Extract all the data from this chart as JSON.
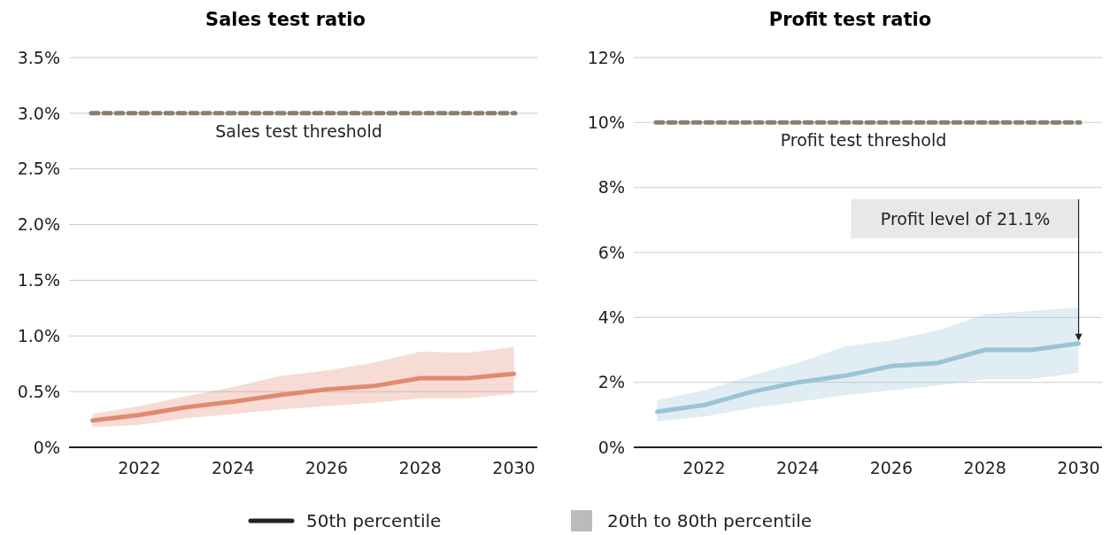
{
  "chart_data": [
    {
      "type": "line",
      "title": "Sales test ratio",
      "x": [
        2021,
        2022,
        2023,
        2024,
        2025,
        2026,
        2027,
        2028,
        2029,
        2030
      ],
      "xlim": [
        2020.5,
        2030.5
      ],
      "xticks": [
        2022,
        2024,
        2026,
        2028,
        2030
      ],
      "ylim": [
        0,
        3.5
      ],
      "yticks": [
        {
          "value": 0,
          "label": "0%"
        },
        {
          "value": 0.5,
          "label": "0.5%"
        },
        {
          "value": 1,
          "label": "1.0%"
        },
        {
          "value": 1.5,
          "label": "1.5%"
        },
        {
          "value": 2,
          "label": "2.0%"
        },
        {
          "value": 2.5,
          "label": "2.5%"
        },
        {
          "value": 3,
          "label": "3.0%"
        },
        {
          "value": 3.5,
          "label": "3.5%"
        }
      ],
      "grid": "y",
      "series": [
        {
          "color": "#e08a70",
          "values": [
            0.24,
            0.29,
            0.36,
            0.41,
            0.47,
            0.52,
            0.55,
            0.62,
            0.62,
            0.66
          ],
          "lower": [
            0.18,
            0.2,
            0.26,
            0.3,
            0.34,
            0.37,
            0.4,
            0.44,
            0.44,
            0.48
          ],
          "upper": [
            0.3,
            0.37,
            0.46,
            0.54,
            0.64,
            0.69,
            0.76,
            0.86,
            0.85,
            0.9
          ]
        }
      ],
      "ref_lines": [
        {
          "axis": "y",
          "value": 3,
          "label": "Sales test threshold",
          "color": "#8a7e6e",
          "line_style": "dashed"
        }
      ],
      "annotations": [
        "50th percentile",
        "20th to 80th percentile"
      ]
    },
    {
      "type": "line",
      "title": "Profit test ratio",
      "x": [
        2021,
        2022,
        2023,
        2024,
        2025,
        2026,
        2027,
        2028,
        2029,
        2030
      ],
      "xlim": [
        2020.5,
        2030.5
      ],
      "xticks": [
        2022,
        2024,
        2026,
        2028,
        2030
      ],
      "ylim": [
        0,
        12
      ],
      "yticks": [
        {
          "value": 0,
          "label": "0%"
        },
        {
          "value": 2,
          "label": "2%"
        },
        {
          "value": 4,
          "label": "4%"
        },
        {
          "value": 6,
          "label": "6%"
        },
        {
          "value": 8,
          "label": "8%"
        },
        {
          "value": 10,
          "label": "10%"
        },
        {
          "value": 12,
          "label": "12%"
        }
      ],
      "grid": "y",
      "series": [
        {
          "color": "#98c4d6",
          "values": [
            1.1,
            1.3,
            1.7,
            2.0,
            2.2,
            2.5,
            2.6,
            3.0,
            3.0,
            3.2
          ],
          "lower": [
            0.8,
            0.95,
            1.2,
            1.4,
            1.6,
            1.75,
            1.9,
            2.1,
            2.1,
            2.3
          ],
          "upper": [
            1.45,
            1.75,
            2.2,
            2.6,
            3.1,
            3.3,
            3.6,
            4.1,
            4.2,
            4.3
          ]
        }
      ],
      "ref_lines": [
        {
          "axis": "y",
          "value": 10,
          "label": "Profit test threshold",
          "color": "#8a7e6e",
          "line_style": "dashed"
        }
      ],
      "annotations": [
        "Profit level of 21.1%"
      ]
    }
  ]
}
